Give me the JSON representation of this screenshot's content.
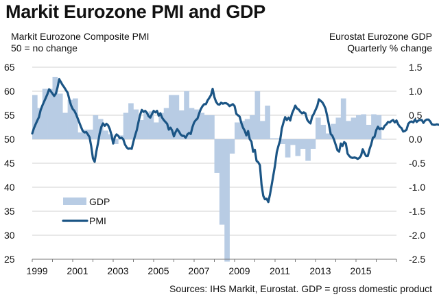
{
  "chart_data": {
    "type": "bar+line",
    "title": "Markit Eurozone PMI and GDP",
    "left_axis_label": [
      "Markit Eurozone Composite PMI",
      "50 = no change"
    ],
    "right_axis_label": [
      "Eurostat Eurozone GDP",
      "Quarterly % change"
    ],
    "source": "Sources: IHS Markit, Eurostat. GDP = gross domestic product",
    "left_ylim": [
      25,
      65
    ],
    "left_ticks": [
      "65",
      "60",
      "55",
      "50",
      "45",
      "40",
      "35",
      "30",
      "25"
    ],
    "right_ylim": [
      -2.5,
      1.5
    ],
    "right_ticks": [
      "1.5",
      "1.0",
      "0.5",
      "0.0",
      "-0.5",
      "-1.0",
      "-1.5",
      "-2.0",
      "-2.5"
    ],
    "x_ticks": [
      "1999",
      "2001",
      "2003",
      "2005",
      "2007",
      "2009",
      "2011",
      "2013",
      "2015"
    ],
    "xlim": [
      1999,
      2017
    ],
    "grid": true,
    "legend": {
      "placement": "left-lower",
      "items": [
        {
          "label": "GDP",
          "type": "bar"
        },
        {
          "label": "PMI",
          "type": "line"
        }
      ]
    },
    "colors": {
      "gdp": "#b8cce4",
      "pmi": "#1b5585",
      "grid": "#d0d0d0"
    },
    "gdp_quarterly": {
      "name": "GDP",
      "start": 1999.0,
      "step": 0.25,
      "values": [
        0.92,
        0.65,
        1.05,
        1.05,
        1.3,
        0.95,
        0.55,
        0.82,
        0.85,
        0.14,
        0.2,
        0.2,
        0.5,
        0.42,
        0.18,
        0.1,
        -0.1,
        0.08,
        0.55,
        0.75,
        0.62,
        0.4,
        0.55,
        0.58,
        0.35,
        0.55,
        0.65,
        0.92,
        0.92,
        0.6,
        1.0,
        0.65,
        0.62,
        0.55,
        0.5,
        0.5,
        -0.7,
        -1.78,
        -2.55,
        -0.3,
        0.35,
        0.38,
        0.42,
        0.5,
        1.0,
        0.38,
        0.7,
        0.02,
        0.02,
        -0.1,
        -0.38,
        -0.12,
        -0.35,
        -0.2,
        -0.45,
        -0.2,
        0.45,
        0.3,
        0.12,
        0.32,
        0.45,
        0.85,
        0.38,
        0.45,
        0.5,
        0.52,
        0.3,
        0.52,
        0.5,
        0.0
      ]
    },
    "pmi_monthly": {
      "name": "PMI",
      "start": 1999.0,
      "step": 0.0833333,
      "values": [
        51.2,
        52.3,
        53.1,
        53.9,
        54.6,
        56.1,
        57.0,
        57.8,
        58.6,
        59.4,
        60.4,
        60.0,
        59.5,
        59.0,
        59.5,
        60.8,
        62.5,
        61.9,
        61.3,
        60.8,
        60.2,
        59.7,
        58.3,
        57.1,
        56.3,
        55.9,
        55.2,
        54.3,
        53.4,
        52.5,
        51.7,
        51.4,
        51.5,
        51.0,
        50.4,
        48.5,
        46.0,
        45.3,
        47.4,
        49.2,
        51.2,
        52.6,
        53.3,
        52.8,
        53.2,
        52.9,
        52.1,
        50.9,
        49.1,
        50.5,
        51.0,
        50.7,
        50.2,
        50.3,
        50.0,
        48.9,
        48.3,
        48.0,
        48.1,
        48.0,
        49.5,
        50.8,
        51.9,
        53.6,
        55.1,
        56.1,
        55.7,
        55.9,
        55.5,
        54.8,
        54.5,
        55.2,
        55.9,
        55.6,
        55.9,
        54.9,
        55.4,
        54.5,
        54.0,
        53.6,
        53.2,
        52.0,
        52.4,
        51.8,
        50.6,
        51.5,
        52.1,
        51.6,
        51.0,
        50.7,
        50.7,
        50.3,
        51.0,
        51.3,
        51.1,
        52.5,
        53.5,
        54.0,
        54.3,
        55.4,
        56.3,
        56.9,
        57.3,
        57.3,
        58.1,
        58.6,
        59.2,
        60.5,
        58.8,
        57.8,
        57.3,
        57.2,
        57.6,
        57.4,
        57.5,
        57.5,
        57.3,
        56.9,
        57.1,
        57.3,
        56.9,
        55.3,
        55.0,
        54.7,
        53.4,
        52.4,
        51.8,
        50.8,
        51.7,
        50.0,
        49.5,
        47.4,
        47.8,
        45.5,
        45.2,
        44.6,
        40.5,
        38.2,
        37.5,
        37.6,
        36.9,
        38.5,
        40.5,
        42.5,
        44.6,
        47.3,
        48.6,
        49.8,
        52.2,
        53.5,
        54.6,
        54.0,
        54.5,
        53.9,
        55.3,
        56.1,
        57.0,
        56.4,
        56.2,
        55.7,
        55.4,
        55.6,
        55.4,
        54.1,
        53.6,
        53.3,
        54.7,
        55.3,
        56.1,
        56.9,
        58.3,
        58.0,
        57.7,
        57.1,
        56.3,
        54.7,
        52.9,
        51.1,
        50.7,
        49.9,
        48.8,
        47.7,
        47.4,
        49.1,
        48.6,
        49.4,
        49.1,
        47.0,
        46.5,
        46.2,
        46.1,
        46.2,
        46.1,
        45.9,
        46.1,
        46.6,
        47.9,
        47.1,
        46.5,
        46.5,
        47.9,
        48.9,
        50.3,
        50.5,
        51.9,
        52.6,
        52.1,
        52.3,
        52.1,
        52.8,
        53.1,
        53.6,
        53.5,
        53.8,
        54.0,
        53.5,
        53.9,
        53.1,
        52.6,
        52.3,
        51.6,
        51.7,
        52.0,
        53.2,
        53.6,
        53.7,
        53.5,
        54.1,
        53.6,
        53.9,
        54.0,
        54.0,
        53.4,
        53.9,
        54.1,
        54.1,
        53.7,
        53.1,
        53.0,
        53.0,
        53.1,
        53.0,
        53.1,
        52.9,
        52.6,
        52.5,
        52.9,
        53.4
      ]
    }
  }
}
